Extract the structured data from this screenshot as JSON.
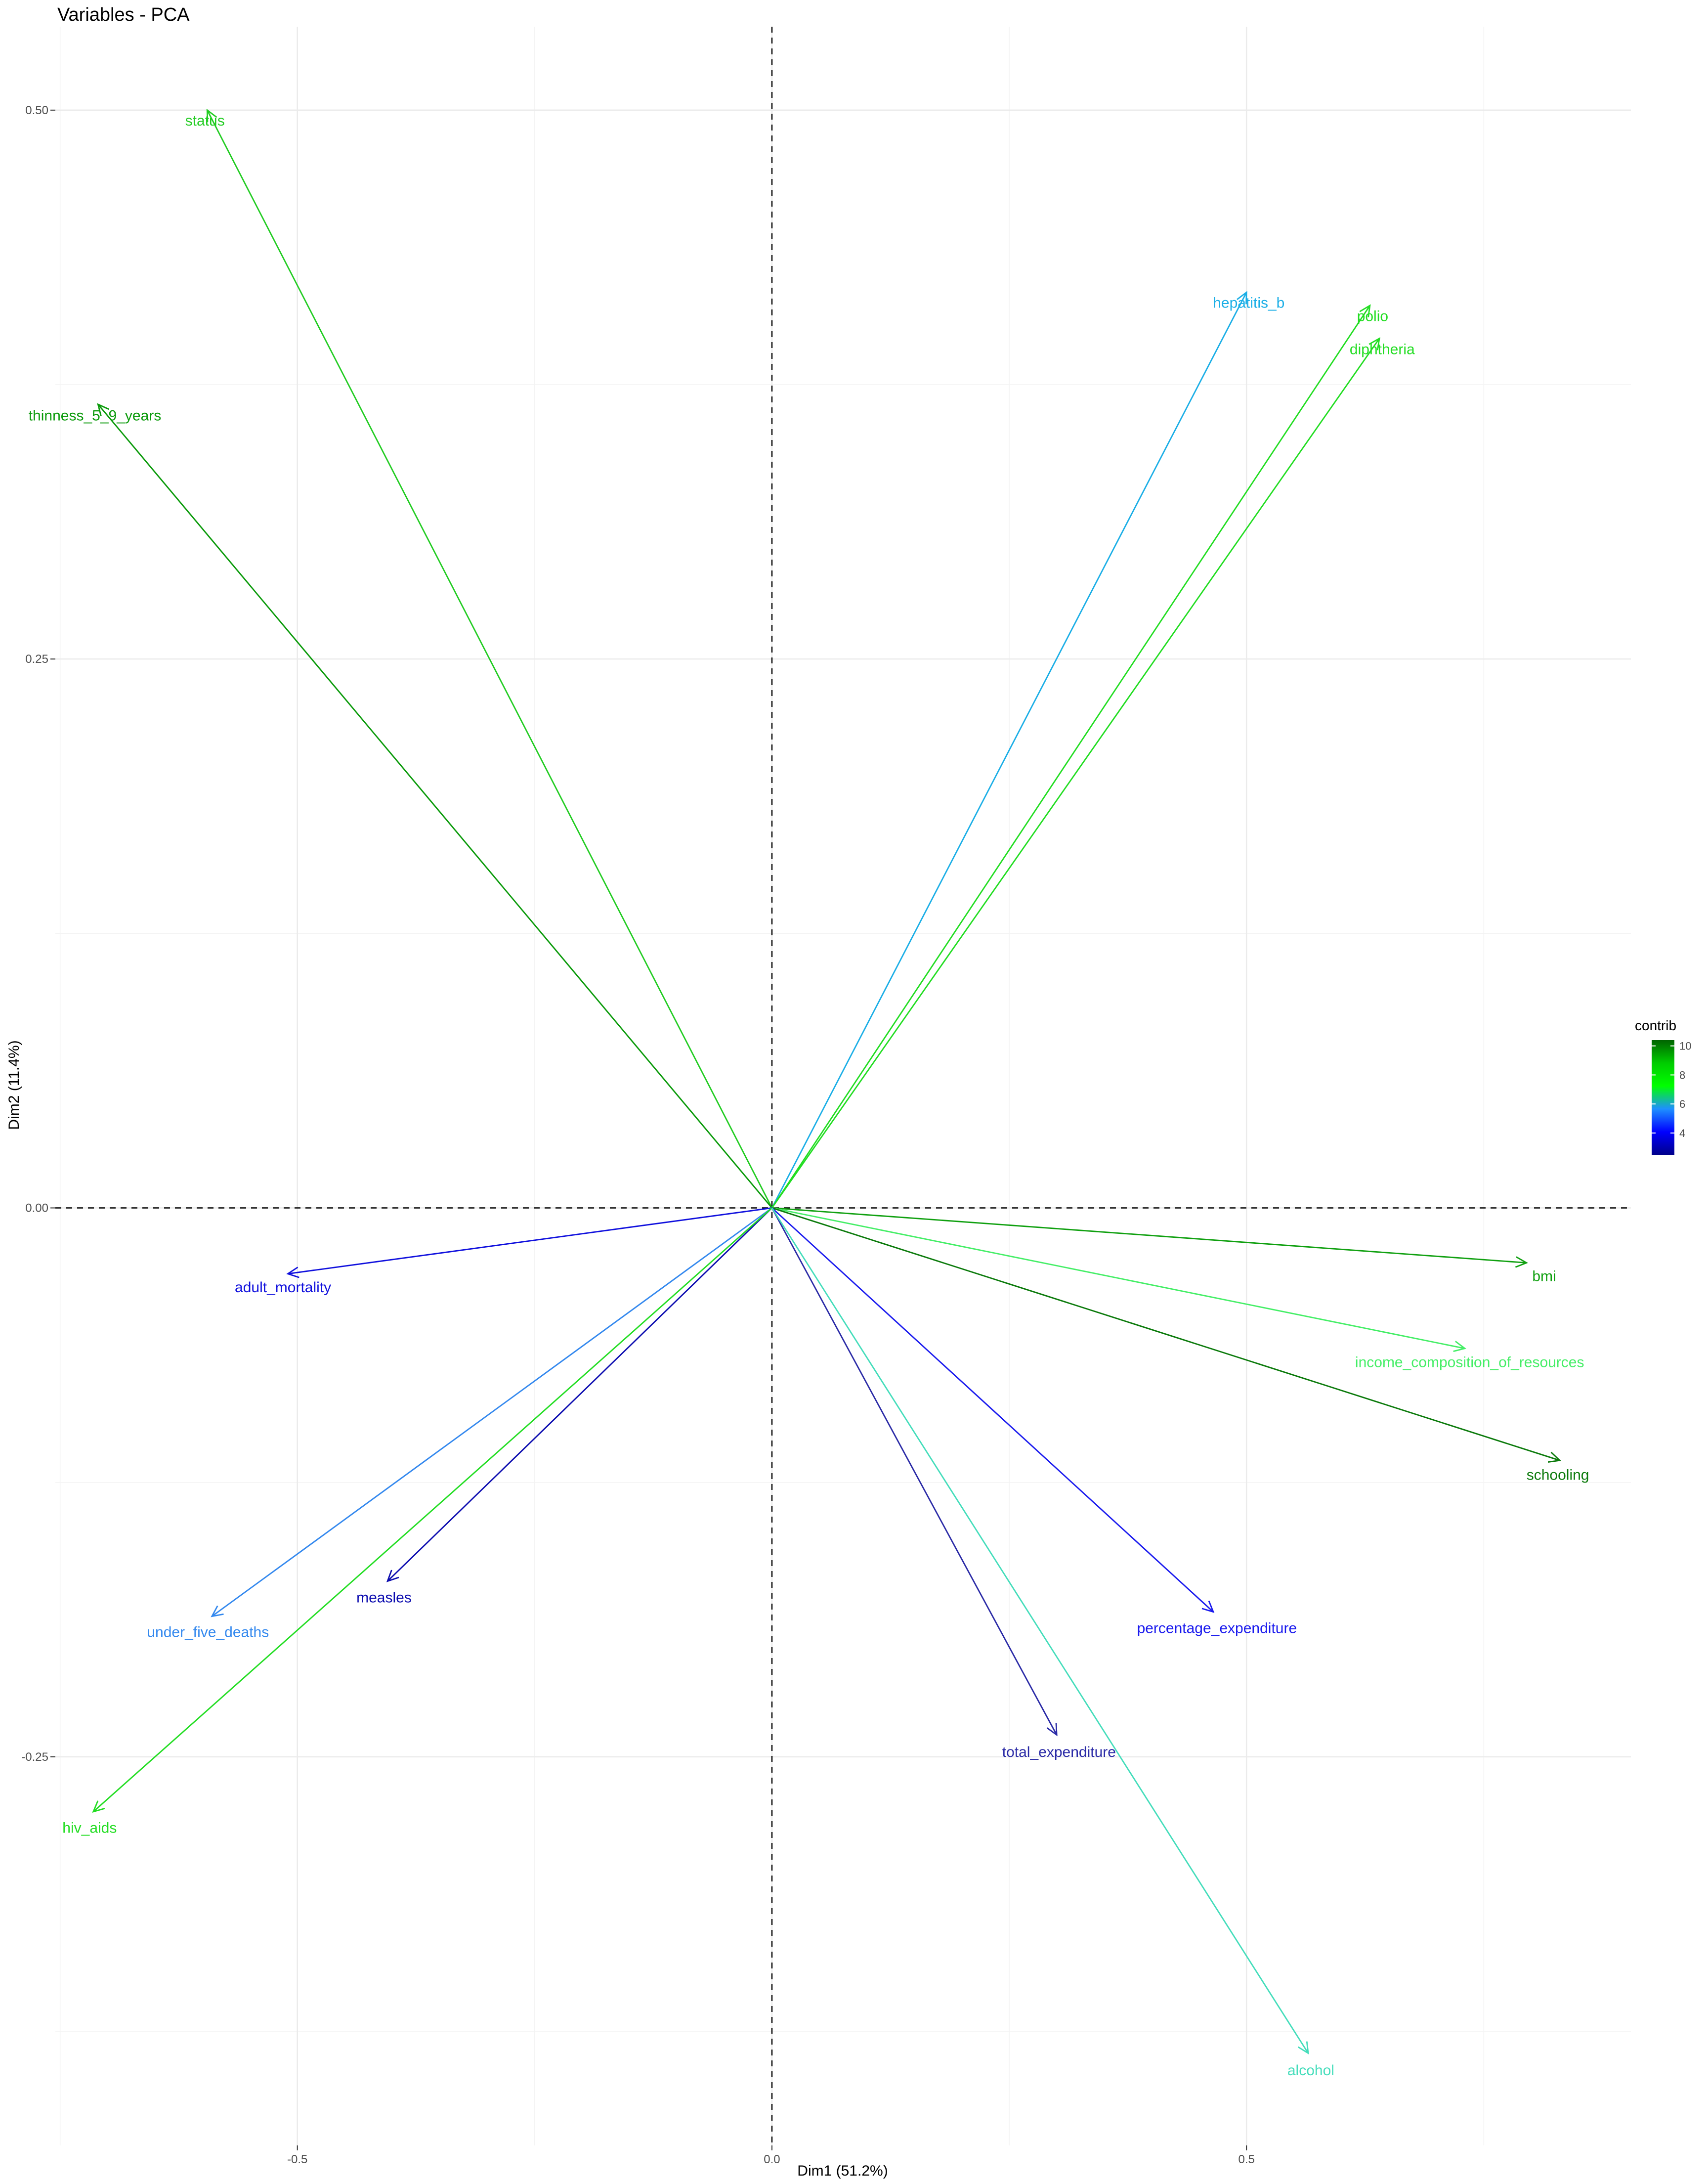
{
  "chart_data": {
    "type": "scatter",
    "subtype": "pca-variable-correlation-circle",
    "title": "Variables - PCA",
    "xlabel": "Dim1 (51.2%)",
    "ylabel": "Dim2 (11.4%)",
    "xlim": [
      -0.755,
      0.905
    ],
    "ylim": [
      -0.427,
      0.538
    ],
    "x_ticks": [
      -0.5,
      0.0,
      0.5
    ],
    "x_tick_labels": [
      "-0.5",
      "0.0",
      "0.5"
    ],
    "y_ticks": [
      -0.25,
      0.0,
      0.25,
      0.5
    ],
    "y_tick_labels": [
      "-0.25",
      "0.00",
      "0.25",
      "0.50"
    ],
    "grid": true,
    "reference_lines": {
      "x": 0,
      "y": 0,
      "style": "dashed"
    },
    "legend": {
      "title": "contrib",
      "position": "right",
      "min": 2.5,
      "max": 10.4,
      "ticks": [
        4,
        6,
        8,
        10
      ],
      "tick_labels": [
        "4",
        "6",
        "8",
        "10"
      ],
      "colors": [
        "#00008B",
        "#0000FF",
        "#1E90FF",
        "#00FF00",
        "#00CC00",
        "#006400"
      ]
    },
    "variables": [
      {
        "name": "status",
        "x": -0.595,
        "y": 0.5,
        "color": "#22cc22"
      },
      {
        "name": "thinness_5_9_years",
        "x": -0.71,
        "y": 0.366,
        "color": "#0a9a0a"
      },
      {
        "name": "hepatitis_b",
        "x": 0.5,
        "y": 0.417,
        "color": "#1aaee6"
      },
      {
        "name": "polio",
        "x": 0.63,
        "y": 0.411,
        "color": "#22dd22"
      },
      {
        "name": "diphtheria",
        "x": 0.64,
        "y": 0.396,
        "color": "#22dd22"
      },
      {
        "name": "adult_mortality",
        "x": -0.51,
        "y": -0.03,
        "color": "#1010dd"
      },
      {
        "name": "bmi",
        "x": 0.795,
        "y": -0.025,
        "color": "#10a010"
      },
      {
        "name": "income_composition_of_resources",
        "x": 0.73,
        "y": -0.064,
        "color": "#44ee66"
      },
      {
        "name": "schooling",
        "x": 0.83,
        "y": -0.115,
        "color": "#0b7a0b"
      },
      {
        "name": "measles",
        "x": -0.405,
        "y": -0.17,
        "color": "#0b0baf"
      },
      {
        "name": "under_five_deaths",
        "x": -0.59,
        "y": -0.186,
        "color": "#3388ee"
      },
      {
        "name": "percentage_expenditure",
        "x": 0.465,
        "y": -0.184,
        "color": "#1a1aee"
      },
      {
        "name": "total_expenditure",
        "x": 0.3,
        "y": -0.24,
        "color": "#2a2aa6"
      },
      {
        "name": "hiv_aids",
        "x": -0.715,
        "y": -0.275,
        "color": "#22dd22"
      },
      {
        "name": "alcohol",
        "x": 0.565,
        "y": -0.385,
        "color": "#44ddbb"
      }
    ]
  }
}
